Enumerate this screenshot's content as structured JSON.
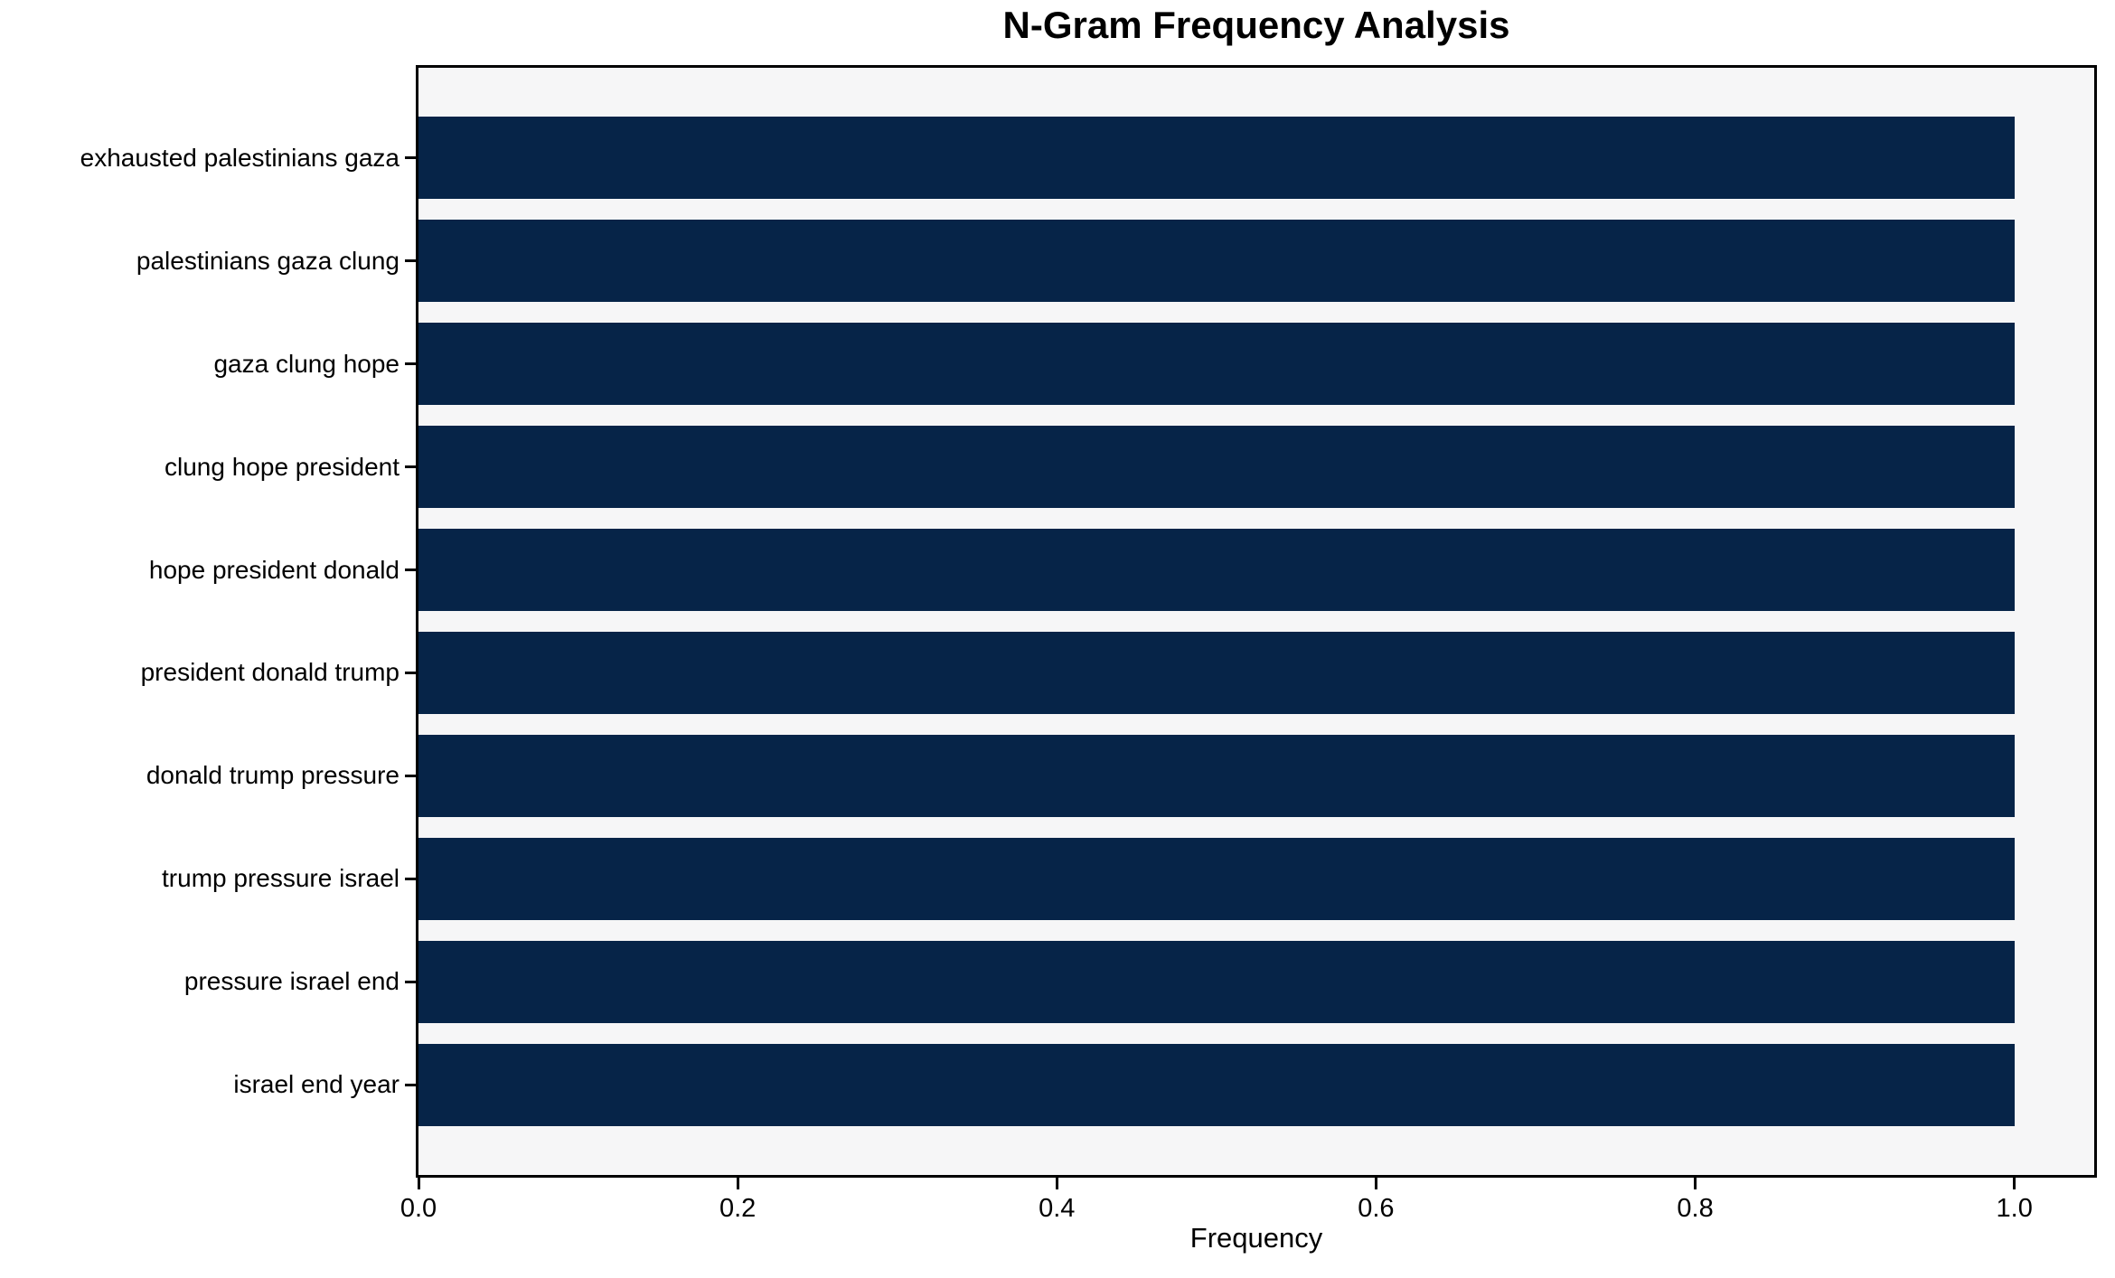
{
  "chart_data": {
    "type": "bar",
    "orientation": "horizontal",
    "title": "N-Gram Frequency Analysis",
    "xlabel": "Frequency",
    "ylabel": "",
    "categories": [
      "exhausted palestinians gaza",
      "palestinians gaza clung",
      "gaza clung hope",
      "clung hope president",
      "hope president donald",
      "president donald trump",
      "donald trump pressure",
      "trump pressure israel",
      "pressure israel end",
      "israel end year"
    ],
    "values": [
      1.0,
      1.0,
      1.0,
      1.0,
      1.0,
      1.0,
      1.0,
      1.0,
      1.0,
      1.0
    ],
    "x_ticks": [
      0.0,
      0.2,
      0.4,
      0.6,
      0.8,
      1.0
    ],
    "x_tick_labels": [
      "0.0",
      "0.2",
      "0.4",
      "0.6",
      "0.8",
      "1.0"
    ],
    "xlim": [
      0,
      1.05
    ],
    "grid": false,
    "legend": null,
    "colors": {
      "bar": "#062448",
      "plot_background": "#f6f6f7",
      "figure_background": "#ffffff",
      "spine": "#000000",
      "text": "#000000"
    }
  }
}
